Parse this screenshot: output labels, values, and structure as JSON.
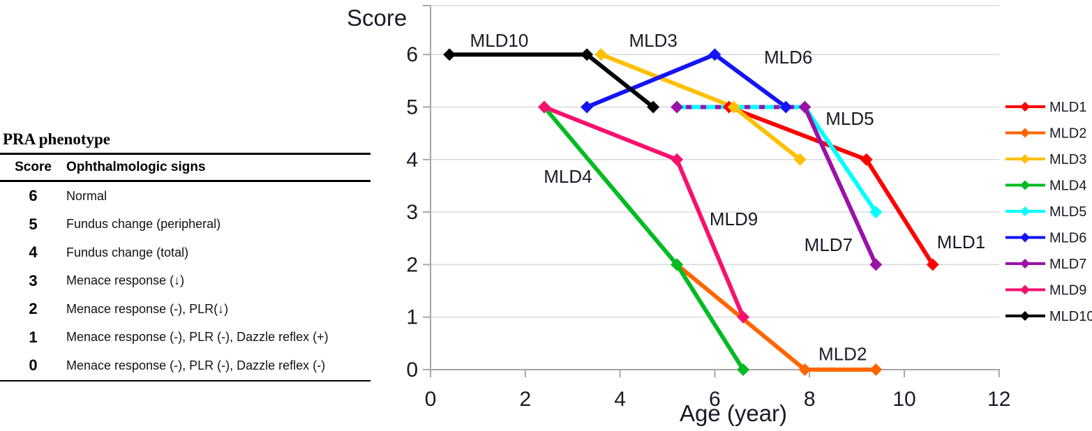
{
  "table": {
    "title": "PRA phenotype",
    "columns": [
      "Score",
      "Ophthalmologic signs"
    ],
    "rows": [
      {
        "score": "6",
        "sign": "Normal"
      },
      {
        "score": "5",
        "sign": "Fundus change (peripheral)"
      },
      {
        "score": "4",
        "sign": "Fundus change (total)"
      },
      {
        "score": "3",
        "sign": "Menace response (↓)"
      },
      {
        "score": "2",
        "sign": "Menace response (-), PLR(↓)"
      },
      {
        "score": "1",
        "sign": "Menace response (-), PLR (-), Dazzle reflex (+)"
      },
      {
        "score": "0",
        "sign": "Menace response (-), PLR (-), Dazzle reflex (-)"
      }
    ]
  },
  "chart_data": {
    "type": "line",
    "title": "",
    "xlabel": "Age (year)",
    "ylabel": "Score",
    "xlim": [
      0,
      12
    ],
    "ylim": [
      0,
      6
    ],
    "xticks": [
      0,
      2,
      4,
      6,
      8,
      10,
      12
    ],
    "yticks": [
      0,
      1,
      2,
      3,
      4,
      5,
      6
    ],
    "grid": true,
    "legend_position": "right",
    "series": [
      {
        "name": "MLD1",
        "color": "#FF0000",
        "points": [
          [
            6.3,
            5
          ],
          [
            9.2,
            4
          ],
          [
            10.6,
            2
          ]
        ]
      },
      {
        "name": "MLD2",
        "color": "#FF6600",
        "points": [
          [
            5.2,
            2
          ],
          [
            7.9,
            0
          ],
          [
            9.4,
            0
          ]
        ]
      },
      {
        "name": "MLD3",
        "color": "#FFC000",
        "points": [
          [
            3.6,
            6
          ],
          [
            6.4,
            5
          ],
          [
            7.8,
            4
          ]
        ]
      },
      {
        "name": "MLD4",
        "color": "#00BB22",
        "points": [
          [
            2.4,
            5
          ],
          [
            5.2,
            2
          ],
          [
            6.6,
            0
          ]
        ]
      },
      {
        "name": "MLD5",
        "color": "#00FFFF",
        "points": [
          [
            5.2,
            5
          ],
          [
            7.9,
            5
          ],
          [
            9.4,
            3
          ]
        ],
        "dashed_segments": [
          0
        ]
      },
      {
        "name": "MLD6",
        "color": "#1414F5",
        "points": [
          [
            3.3,
            5
          ],
          [
            6.0,
            6
          ],
          [
            7.5,
            5
          ]
        ]
      },
      {
        "name": "MLD7",
        "color": "#9B12A6",
        "points": [
          [
            5.2,
            5
          ],
          [
            7.9,
            5
          ],
          [
            9.4,
            2
          ]
        ]
      },
      {
        "name": "MLD9",
        "color": "#F8106E",
        "points": [
          [
            2.4,
            5
          ],
          [
            5.2,
            4
          ],
          [
            6.6,
            1
          ]
        ]
      },
      {
        "name": "MLD10",
        "color": "#000000",
        "points": [
          [
            0.4,
            6
          ],
          [
            3.3,
            6
          ],
          [
            4.7,
            5
          ]
        ]
      }
    ],
    "annotations": [
      {
        "text": "MLD10",
        "x": 1.45,
        "y": 6.27
      },
      {
        "text": "MLD3",
        "x": 4.7,
        "y": 6.27
      },
      {
        "text": "MLD6",
        "x": 7.55,
        "y": 5.95
      },
      {
        "text": "MLD5",
        "x": 8.85,
        "y": 4.78
      },
      {
        "text": "MLD7",
        "x": 8.4,
        "y": 2.38
      },
      {
        "text": "MLD1",
        "x": 11.2,
        "y": 2.43
      },
      {
        "text": "MLD2",
        "x": 8.7,
        "y": 0.3
      },
      {
        "text": "MLD4",
        "x": 2.9,
        "y": 3.68
      },
      {
        "text": "MLD9",
        "x": 6.4,
        "y": 2.87
      }
    ]
  },
  "colors": {
    "grid": "#D9D9D9",
    "axis": "#A6A6A6",
    "tick_text": "#1A1A26",
    "title_text": "#000000"
  }
}
